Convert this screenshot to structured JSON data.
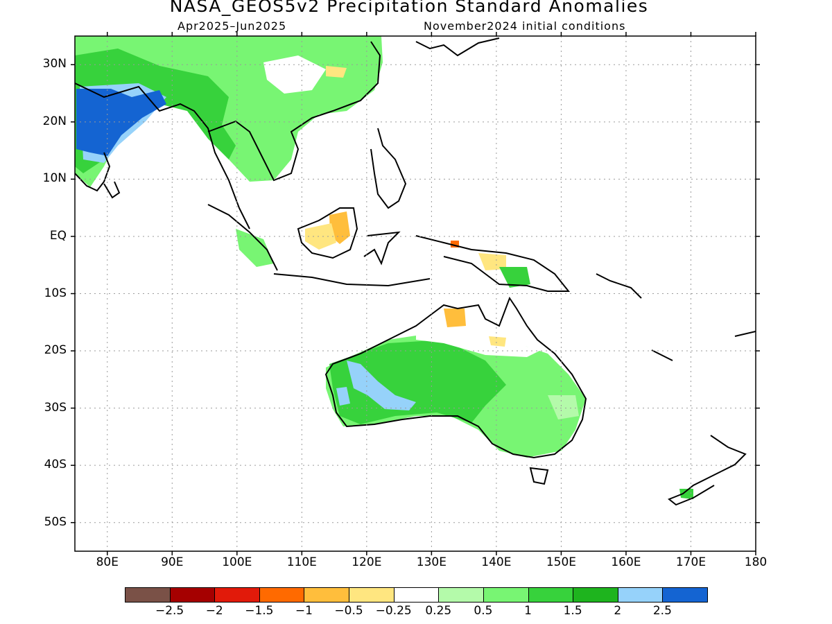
{
  "title": "NASA_GEOS5v2 Precipitation Standard Anomalies",
  "subtitle_left": "Apr2025–Jun2025",
  "subtitle_right": "November2024 initial conditions",
  "chart_data": {
    "type": "heatmap",
    "variable": "Precipitation Standard Anomalies",
    "lon_range": [
      75,
      180
    ],
    "lat_range": [
      -55,
      35
    ],
    "grid": true,
    "lat_ticks": [
      "30N",
      "20N",
      "10N",
      "EQ",
      "10S",
      "20S",
      "30S",
      "40S",
      "50S"
    ],
    "lat_tick_values": [
      30,
      20,
      10,
      0,
      -10,
      -20,
      -30,
      -40,
      -50
    ],
    "lon_ticks": [
      "80E",
      "90E",
      "100E",
      "110E",
      "120E",
      "130E",
      "140E",
      "150E",
      "160E",
      "170E",
      "180"
    ],
    "lon_tick_values": [
      80,
      90,
      100,
      110,
      120,
      130,
      140,
      150,
      160,
      170,
      180
    ],
    "colorbar": {
      "colors": [
        "#7a5147",
        "#a50000",
        "#e11a0a",
        "#ff6a00",
        "#ffbe3c",
        "#ffe680",
        "#ffffff",
        "#b4faaa",
        "#78f573",
        "#37d23c",
        "#1eb41e",
        "#96d2fa",
        "#1464d2"
      ],
      "labels": [
        "−2.5",
        "−2",
        "−1.5",
        "−1",
        "−0.5",
        "−0.25",
        "0.25",
        "0.5",
        "1",
        "1.5",
        "2",
        "2.5"
      ]
    }
  }
}
